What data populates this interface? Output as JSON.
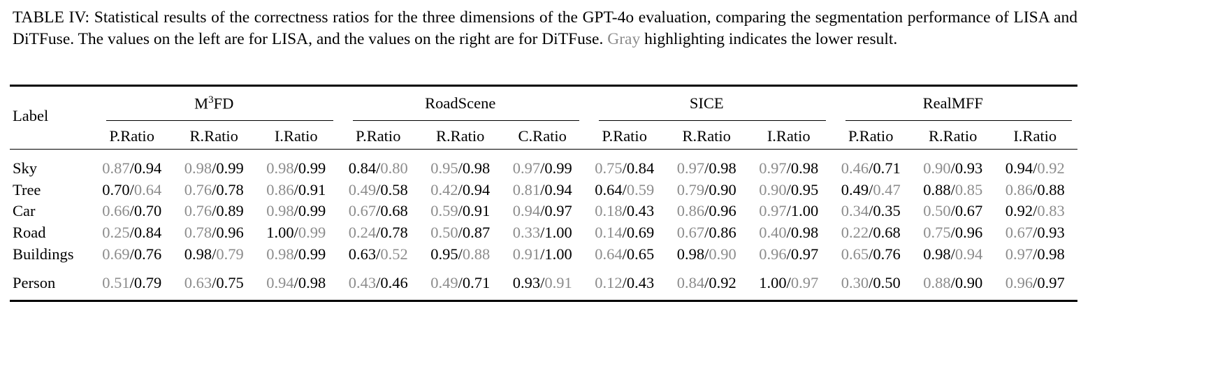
{
  "caption": {
    "before": "TABLE IV: Statistical results of the correctness ratios for the three dimensions of the GPT-4o evaluation, comparing the segmentation performance of LISA and DiTFuse. The values on the left are for LISA, and the values on the right are for DiTFuse.",
    "gray_word": "Gray",
    "after": "highlighting indicates the lower result."
  },
  "table": {
    "label_header": "Label",
    "separator": "/",
    "groups": [
      {
        "name": "M",
        "sup": "3",
        "name_rest": "FD",
        "columns": [
          "P.Ratio",
          "R.Ratio",
          "I.Ratio"
        ]
      },
      {
        "name": "RoadScene",
        "columns": [
          "P.Ratio",
          "R.Ratio",
          "C.Ratio"
        ]
      },
      {
        "name": "SICE",
        "columns": [
          "P.Ratio",
          "R.Ratio",
          "I.Ratio"
        ]
      },
      {
        "name": "RealMFF",
        "columns": [
          "P.Ratio",
          "R.Ratio",
          "I.Ratio"
        ]
      }
    ],
    "rows": [
      {
        "label": "Sky",
        "cells": [
          [
            "0.87",
            "0.94"
          ],
          [
            "0.98",
            "0.99"
          ],
          [
            "0.98",
            "0.99"
          ],
          [
            "0.84",
            "0.80"
          ],
          [
            "0.95",
            "0.98"
          ],
          [
            "0.97",
            "0.99"
          ],
          [
            "0.75",
            "0.84"
          ],
          [
            "0.97",
            "0.98"
          ],
          [
            "0.97",
            "0.98"
          ],
          [
            "0.46",
            "0.71"
          ],
          [
            "0.90",
            "0.93"
          ],
          [
            "0.94",
            "0.92"
          ]
        ]
      },
      {
        "label": "Tree",
        "cells": [
          [
            "0.70",
            "0.64"
          ],
          [
            "0.76",
            "0.78"
          ],
          [
            "0.86",
            "0.91"
          ],
          [
            "0.49",
            "0.58"
          ],
          [
            "0.42",
            "0.94"
          ],
          [
            "0.81",
            "0.94"
          ],
          [
            "0.64",
            "0.59"
          ],
          [
            "0.79",
            "0.90"
          ],
          [
            "0.90",
            "0.95"
          ],
          [
            "0.49",
            "0.47"
          ],
          [
            "0.88",
            "0.85"
          ],
          [
            "0.86",
            "0.88"
          ]
        ]
      },
      {
        "label": "Car",
        "cells": [
          [
            "0.66",
            "0.70"
          ],
          [
            "0.76",
            "0.89"
          ],
          [
            "0.98",
            "0.99"
          ],
          [
            "0.67",
            "0.68"
          ],
          [
            "0.59",
            "0.91"
          ],
          [
            "0.94",
            "0.97"
          ],
          [
            "0.18",
            "0.43"
          ],
          [
            "0.86",
            "0.96"
          ],
          [
            "0.97",
            "1.00"
          ],
          [
            "0.34",
            "0.35"
          ],
          [
            "0.50",
            "0.67"
          ],
          [
            "0.92",
            "0.83"
          ]
        ]
      },
      {
        "label": "Road",
        "cells": [
          [
            "0.25",
            "0.84"
          ],
          [
            "0.78",
            "0.96"
          ],
          [
            "1.00",
            "0.99"
          ],
          [
            "0.24",
            "0.78"
          ],
          [
            "0.50",
            "0.87"
          ],
          [
            "0.33",
            "1.00"
          ],
          [
            "0.14",
            "0.69"
          ],
          [
            "0.67",
            "0.86"
          ],
          [
            "0.40",
            "0.98"
          ],
          [
            "0.22",
            "0.68"
          ],
          [
            "0.75",
            "0.96"
          ],
          [
            "0.67",
            "0.93"
          ]
        ]
      },
      {
        "label": "Buildings",
        "cells": [
          [
            "0.69",
            "0.76"
          ],
          [
            "0.98",
            "0.79"
          ],
          [
            "0.98",
            "0.99"
          ],
          [
            "0.63",
            "0.52"
          ],
          [
            "0.95",
            "0.88"
          ],
          [
            "0.91",
            "1.00"
          ],
          [
            "0.64",
            "0.65"
          ],
          [
            "0.98",
            "0.90"
          ],
          [
            "0.96",
            "0.97"
          ],
          [
            "0.65",
            "0.76"
          ],
          [
            "0.98",
            "0.94"
          ],
          [
            "0.97",
            "0.98"
          ]
        ]
      },
      {
        "label": "Person",
        "cells": [
          [
            "0.51",
            "0.79"
          ],
          [
            "0.63",
            "0.75"
          ],
          [
            "0.94",
            "0.98"
          ],
          [
            "0.43",
            "0.46"
          ],
          [
            "0.49",
            "0.71"
          ],
          [
            "0.93",
            "0.91"
          ],
          [
            "0.12",
            "0.43"
          ],
          [
            "0.84",
            "0.92"
          ],
          [
            "1.00",
            "0.97"
          ],
          [
            "0.30",
            "0.50"
          ],
          [
            "0.88",
            "0.90"
          ],
          [
            "0.96",
            "0.97"
          ]
        ]
      }
    ]
  }
}
